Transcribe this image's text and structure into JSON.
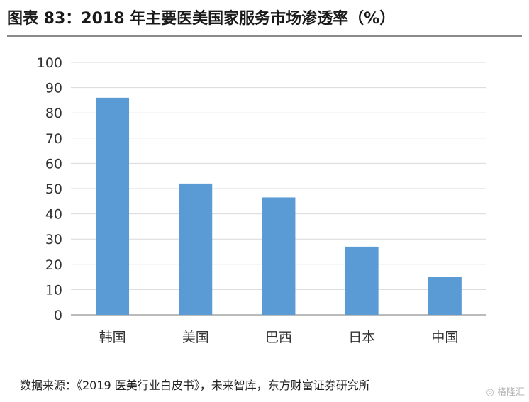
{
  "header": {
    "title": "图表 83：2018 年主要医美国家服务市场渗透率（%）"
  },
  "footer": {
    "source": "数据来源：《2019 医美行业白皮书》，未来智库，东方财富证券研究所"
  },
  "watermark": {
    "text": "格隆汇"
  },
  "chart_data": {
    "type": "bar",
    "title": "图表 83：2018 年主要医美国家服务市场渗透率（%）",
    "xlabel": "",
    "ylabel": "",
    "categories": [
      "韩国",
      "美国",
      "巴西",
      "日本",
      "中国"
    ],
    "values": [
      86,
      52,
      46.5,
      27,
      15
    ],
    "ylim": [
      0,
      100
    ],
    "yticks": [
      0,
      10,
      20,
      30,
      40,
      50,
      60,
      70,
      80,
      90,
      100
    ],
    "grid": true,
    "legend": "none",
    "bar_color": "#5b9bd5"
  }
}
